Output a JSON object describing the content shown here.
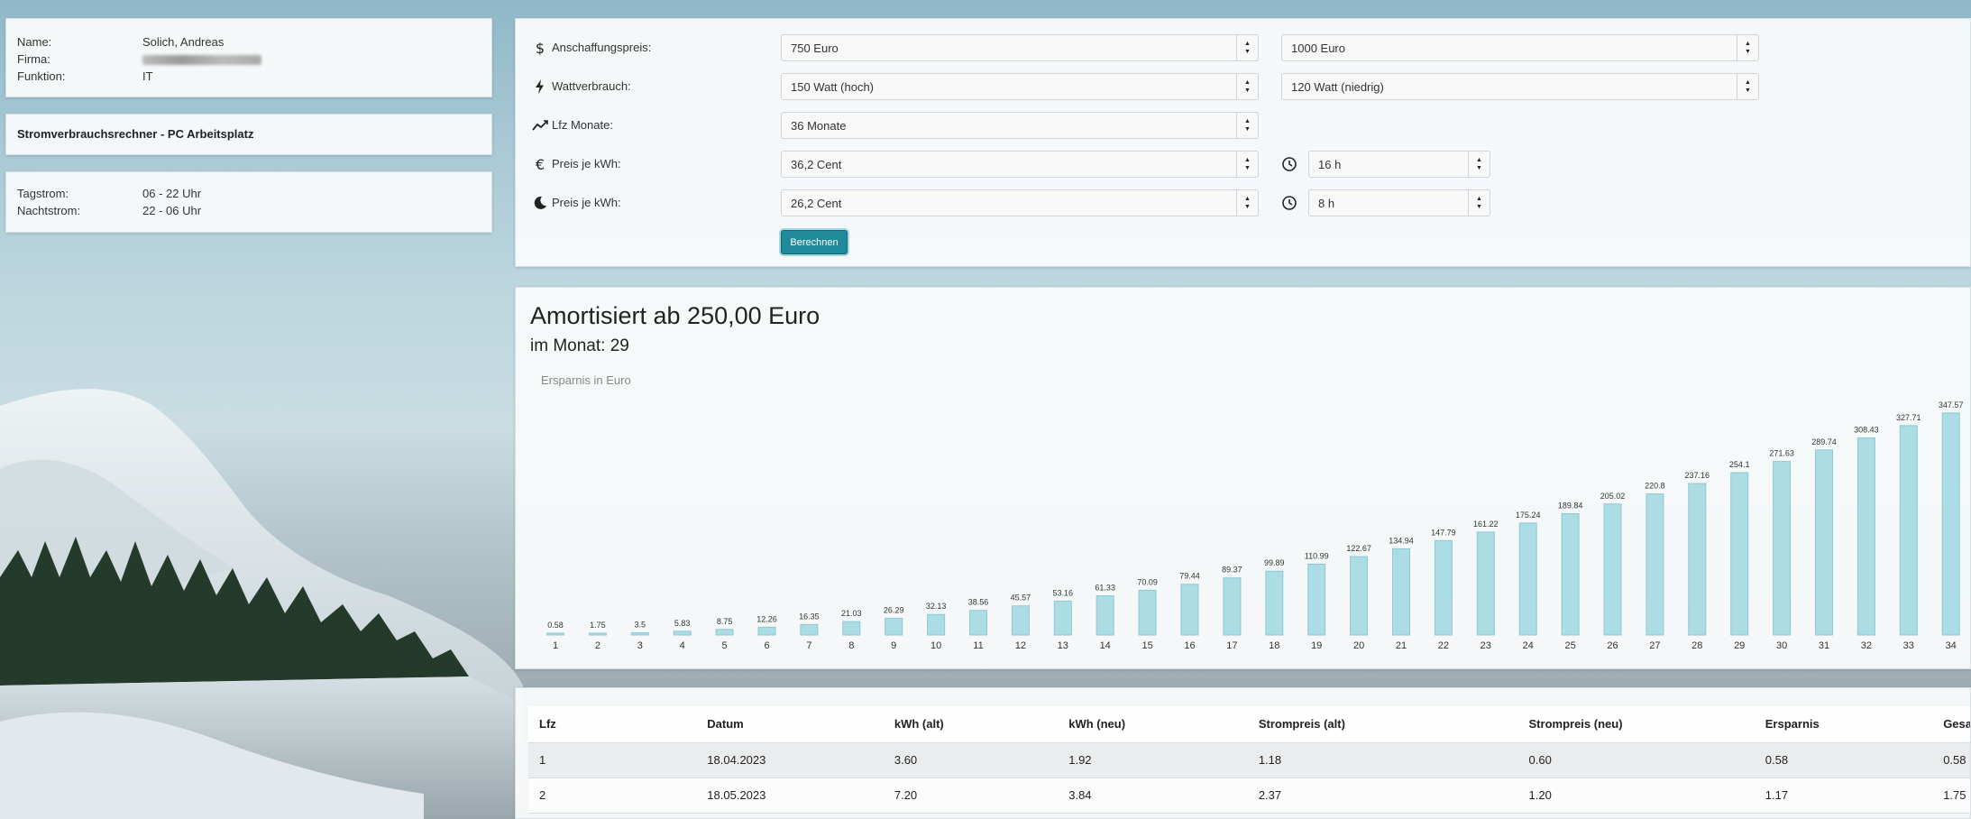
{
  "user": {
    "name_label": "Name:",
    "name_value": "Solich, Andreas",
    "firma_label": "Firma:",
    "funktion_label": "Funktion:",
    "funktion_value": "IT"
  },
  "app_title": "Stromverbrauchsrechner - PC Arbeitsplatz",
  "times": {
    "tag_label": "Tagstrom:",
    "tag_value": "06 - 22 Uhr",
    "nacht_label": "Nachtstrom:",
    "nacht_value": "22 - 06 Uhr"
  },
  "form": {
    "anschaffung_label": "Anschaffungspreis:",
    "anschaffung_alt": "750 Euro",
    "anschaffung_neu": "1000 Euro",
    "watt_label": "Wattverbrauch:",
    "watt_alt": "150 Watt (hoch)",
    "watt_neu": "120 Watt (niedrig)",
    "lfz_label": "Lfz Monate:",
    "lfz_value": "36 Monate",
    "preis_tag_label": "Preis je kWh:",
    "preis_tag_value": "36,2 Cent",
    "stunden_tag": "16 h",
    "preis_nacht_label": "Preis je kWh:",
    "preis_nacht_value": "26,2 Cent",
    "stunden_nacht": "8 h",
    "button_label": "Berechnen"
  },
  "result": {
    "title": "Amortisiert ab 250,00 Euro",
    "subtitle": "im Monat: 29"
  },
  "chart_data": {
    "type": "bar",
    "title": "",
    "legend": "Ersparnis in Euro",
    "categories": [
      "1",
      "2",
      "3",
      "4",
      "5",
      "6",
      "7",
      "8",
      "9",
      "10",
      "11",
      "12",
      "13",
      "14",
      "15",
      "16",
      "17",
      "18",
      "19",
      "20",
      "21",
      "22",
      "23",
      "24",
      "25",
      "26",
      "27",
      "28",
      "29",
      "30",
      "31",
      "32",
      "33",
      "34"
    ],
    "series": [
      {
        "name": "Ersparnis in Euro",
        "values": [
          0.58,
          1.75,
          3.5,
          5.83,
          8.75,
          12.26,
          16.35,
          21.03,
          26.29,
          32.13,
          38.56,
          45.57,
          53.16,
          61.33,
          70.09,
          79.44,
          89.37,
          99.89,
          110.99,
          122.67,
          134.94,
          147.79,
          161.22,
          175.24,
          189.84,
          205.02,
          220.8,
          237.16,
          254.1,
          271.63,
          289.74,
          308.43,
          327.71,
          347.57
        ]
      }
    ],
    "ylim": [
      0,
      360
    ],
    "grid": false,
    "legend_position": "top-left"
  },
  "table": {
    "headers": [
      "Lfz",
      "Datum",
      "kWh (alt)",
      "kWh (neu)",
      "Strompreis (alt)",
      "Strompreis (neu)",
      "Ersparnis",
      "Gesamt"
    ],
    "rows": [
      [
        "1",
        "18.04.2023",
        "3.60",
        "1.92",
        "1.18",
        "0.60",
        "0.58",
        "0.58"
      ],
      [
        "2",
        "18.05.2023",
        "7.20",
        "3.84",
        "2.37",
        "1.20",
        "1.17",
        "1.75"
      ]
    ]
  }
}
